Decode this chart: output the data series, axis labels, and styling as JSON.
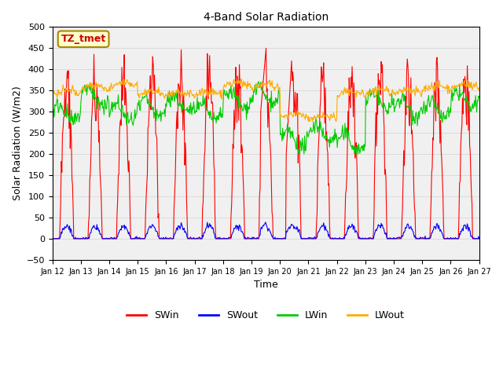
{
  "title": "4-Band Solar Radiation",
  "xlabel": "Time",
  "ylabel": "Solar Radiation (W/m2)",
  "annotation": "TZ_tmet",
  "ylim": [
    -50,
    500
  ],
  "yticks": [
    -50,
    0,
    50,
    100,
    150,
    200,
    250,
    300,
    350,
    400,
    450,
    500
  ],
  "xticklabels": [
    "Jan 12",
    "Jan 13",
    "Jan 14",
    "Jan 15",
    "Jan 16",
    "Jan 17",
    "Jan 18",
    "Jan 19",
    "Jan 20",
    "Jan 21",
    "Jan 22",
    "Jan 23",
    "Jan 24",
    "Jan 25",
    "Jan 26",
    "Jan 27"
  ],
  "n_days": 15,
  "legend": [
    {
      "label": "SWin",
      "color": "#ff0000"
    },
    {
      "label": "SWout",
      "color": "#0000ff"
    },
    {
      "label": "LWin",
      "color": "#00cc00"
    },
    {
      "label": "LWout",
      "color": "#ffaa00"
    }
  ],
  "colors": {
    "SWin": "#ff0000",
    "SWout": "#0000ff",
    "LWin": "#00cc00",
    "LWout": "#ffaa00"
  },
  "annotation_bbox": {
    "facecolor": "#ffffcc",
    "edgecolor": "#aa8800",
    "textcolor": "#cc0000"
  }
}
